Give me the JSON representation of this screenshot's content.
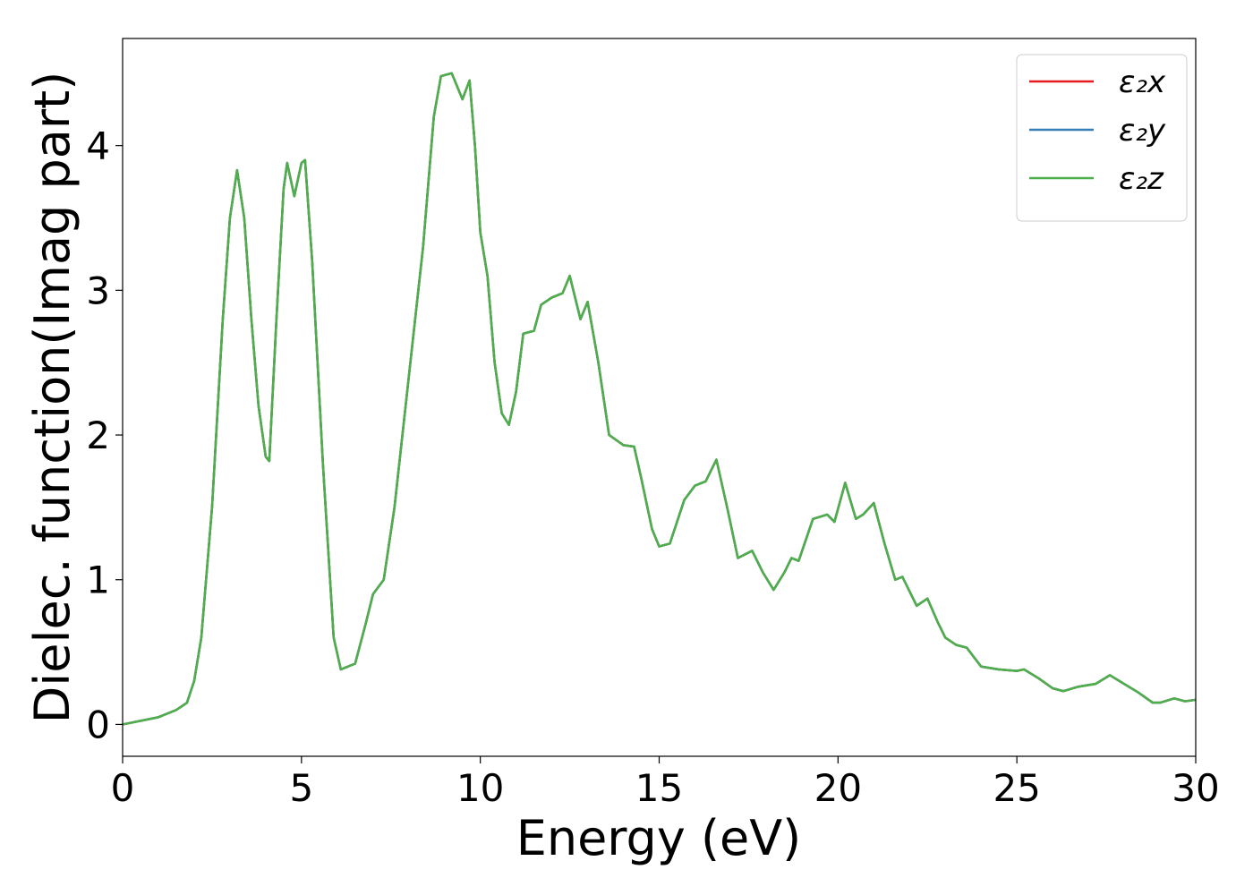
{
  "chart_data": {
    "type": "line",
    "xlabel": "Energy (eV)",
    "ylabel": "Dielec. function(Imag part)",
    "x": [
      0,
      1,
      1.5,
      1.8,
      2.0,
      2.2,
      2.5,
      2.8,
      3.0,
      3.2,
      3.4,
      3.6,
      3.8,
      4.0,
      4.1,
      4.3,
      4.5,
      4.6,
      4.8,
      5.0,
      5.1,
      5.3,
      5.6,
      5.9,
      6.1,
      6.5,
      6.8,
      7.0,
      7.3,
      7.6,
      8.0,
      8.4,
      8.7,
      8.9,
      9.2,
      9.5,
      9.7,
      9.85,
      10.0,
      10.2,
      10.4,
      10.6,
      10.8,
      11.0,
      11.2,
      11.5,
      11.7,
      12.0,
      12.3,
      12.5,
      12.8,
      13.0,
      13.3,
      13.6,
      14.0,
      14.3,
      14.5,
      14.8,
      15.0,
      15.3,
      15.7,
      16.0,
      16.3,
      16.6,
      16.9,
      17.2,
      17.6,
      17.9,
      18.2,
      18.5,
      18.7,
      18.9,
      19.3,
      19.7,
      19.9,
      20.2,
      20.5,
      20.7,
      21.0,
      21.3,
      21.6,
      21.8,
      22.2,
      22.5,
      22.8,
      23.0,
      23.3,
      23.6,
      24.0,
      24.5,
      25.0,
      25.2,
      25.6,
      26.0,
      26.3,
      26.7,
      27.2,
      27.6,
      28.0,
      28.4,
      28.8,
      29.0,
      29.4,
      29.7,
      30.0
    ],
    "series": [
      {
        "name": "ε₂x",
        "color": "#e41a1c",
        "values": [
          0.0,
          0.05,
          0.1,
          0.15,
          0.3,
          0.6,
          1.5,
          2.8,
          3.5,
          3.83,
          3.5,
          2.8,
          2.2,
          1.85,
          1.82,
          2.8,
          3.7,
          3.88,
          3.65,
          3.88,
          3.9,
          3.2,
          1.8,
          0.6,
          0.38,
          0.42,
          0.7,
          0.9,
          1.0,
          1.5,
          2.4,
          3.3,
          4.2,
          4.48,
          4.5,
          4.32,
          4.45,
          4.0,
          3.4,
          3.1,
          2.5,
          2.15,
          2.07,
          2.3,
          2.7,
          2.72,
          2.9,
          2.95,
          2.98,
          3.1,
          2.8,
          2.92,
          2.5,
          2.0,
          1.93,
          1.92,
          1.7,
          1.35,
          1.23,
          1.25,
          1.55,
          1.65,
          1.68,
          1.83,
          1.5,
          1.15,
          1.2,
          1.05,
          0.93,
          1.05,
          1.15,
          1.13,
          1.42,
          1.45,
          1.4,
          1.67,
          1.42,
          1.45,
          1.53,
          1.25,
          1.0,
          1.02,
          0.82,
          0.87,
          0.7,
          0.6,
          0.55,
          0.53,
          0.4,
          0.38,
          0.37,
          0.38,
          0.32,
          0.25,
          0.23,
          0.26,
          0.28,
          0.34,
          0.28,
          0.22,
          0.15,
          0.15,
          0.18,
          0.16,
          0.17
        ]
      },
      {
        "name": "ε₂y",
        "color": "#377eb8",
        "values": [
          0.0,
          0.05,
          0.1,
          0.15,
          0.3,
          0.6,
          1.5,
          2.8,
          3.5,
          3.83,
          3.5,
          2.8,
          2.2,
          1.85,
          1.82,
          2.8,
          3.7,
          3.88,
          3.65,
          3.88,
          3.9,
          3.2,
          1.8,
          0.6,
          0.38,
          0.42,
          0.7,
          0.9,
          1.0,
          1.5,
          2.4,
          3.3,
          4.2,
          4.48,
          4.5,
          4.32,
          4.45,
          4.0,
          3.4,
          3.1,
          2.5,
          2.15,
          2.07,
          2.3,
          2.7,
          2.72,
          2.9,
          2.95,
          2.98,
          3.1,
          2.8,
          2.92,
          2.5,
          2.0,
          1.93,
          1.92,
          1.7,
          1.35,
          1.23,
          1.25,
          1.55,
          1.65,
          1.68,
          1.83,
          1.5,
          1.15,
          1.2,
          1.05,
          0.93,
          1.05,
          1.15,
          1.13,
          1.42,
          1.45,
          1.4,
          1.67,
          1.42,
          1.45,
          1.53,
          1.25,
          1.0,
          1.02,
          0.82,
          0.87,
          0.7,
          0.6,
          0.55,
          0.53,
          0.4,
          0.38,
          0.37,
          0.38,
          0.32,
          0.25,
          0.23,
          0.26,
          0.28,
          0.34,
          0.28,
          0.22,
          0.15,
          0.15,
          0.18,
          0.16,
          0.17
        ]
      },
      {
        "name": "ε₂z",
        "color": "#4daf4a",
        "values": [
          0.0,
          0.05,
          0.1,
          0.15,
          0.3,
          0.6,
          1.5,
          2.8,
          3.5,
          3.83,
          3.5,
          2.8,
          2.2,
          1.85,
          1.82,
          2.8,
          3.7,
          3.88,
          3.65,
          3.88,
          3.9,
          3.2,
          1.8,
          0.6,
          0.38,
          0.42,
          0.7,
          0.9,
          1.0,
          1.5,
          2.4,
          3.3,
          4.2,
          4.48,
          4.5,
          4.32,
          4.45,
          4.0,
          3.4,
          3.1,
          2.5,
          2.15,
          2.07,
          2.3,
          2.7,
          2.72,
          2.9,
          2.95,
          2.98,
          3.1,
          2.8,
          2.92,
          2.5,
          2.0,
          1.93,
          1.92,
          1.7,
          1.35,
          1.23,
          1.25,
          1.55,
          1.65,
          1.68,
          1.83,
          1.5,
          1.15,
          1.2,
          1.05,
          0.93,
          1.05,
          1.15,
          1.13,
          1.42,
          1.45,
          1.4,
          1.67,
          1.42,
          1.45,
          1.53,
          1.25,
          1.0,
          1.02,
          0.82,
          0.87,
          0.7,
          0.6,
          0.55,
          0.53,
          0.4,
          0.38,
          0.37,
          0.38,
          0.32,
          0.25,
          0.23,
          0.26,
          0.28,
          0.34,
          0.28,
          0.22,
          0.15,
          0.15,
          0.18,
          0.16,
          0.17
        ]
      }
    ],
    "xlim": [
      0,
      30
    ],
    "xticks": [
      0,
      5,
      10,
      15,
      20,
      25,
      30
    ],
    "ylim": [
      -0.22,
      4.74
    ],
    "yticks": [
      0,
      1,
      2,
      3,
      4
    ],
    "grid": false,
    "legend": "upper right"
  }
}
